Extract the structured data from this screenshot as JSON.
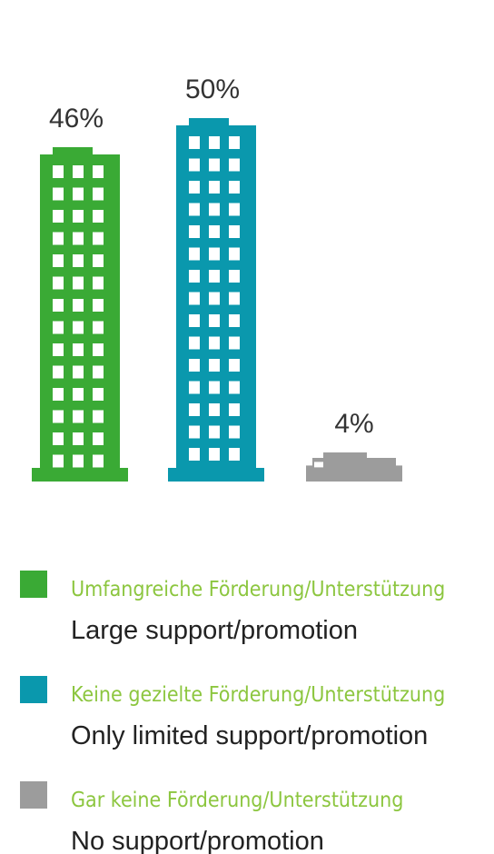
{
  "chart_data": {
    "type": "bar",
    "categories": [
      "Umfangreiche Förderung/Unterstützung",
      "Keine gezielte Förderung/Unterstützung",
      "Gar keine Förderung/Unterstützung"
    ],
    "category_translations": [
      "Large support/promotion",
      "Only limited support/promotion",
      "No support/promotion"
    ],
    "values": [
      46,
      50,
      4
    ],
    "value_labels": [
      "46%",
      "50%",
      "4%"
    ],
    "colors": [
      "#3aaa35",
      "#0a98ad",
      "#9c9c9c"
    ],
    "legend_text_color": "#8cc63f"
  }
}
